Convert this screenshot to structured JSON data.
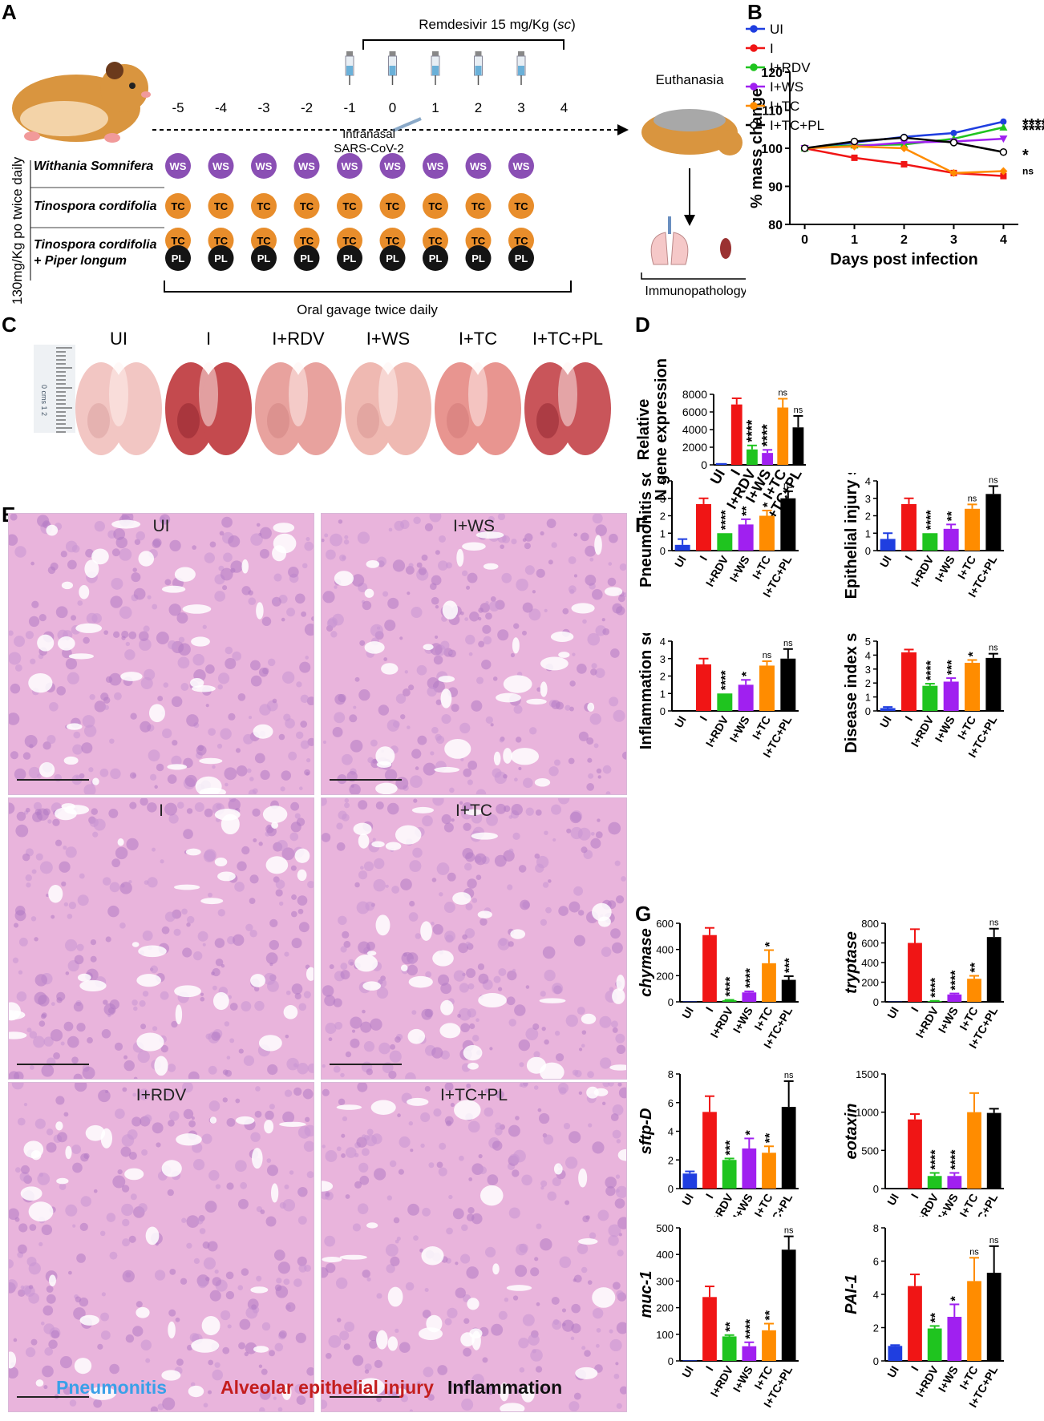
{
  "panels": {
    "A": "A",
    "B": "B",
    "C": "C",
    "D": "D",
    "E": "E",
    "F": "F",
    "G": "G"
  },
  "panelA": {
    "remdesivir_prefix": "Remdesivir 15 mg/Kg (",
    "remdesivir_route": "sc",
    "remdesivir_suffix": ")",
    "days": [
      "-5",
      "-4",
      "-3",
      "-2",
      "-1",
      "0",
      "1",
      "2",
      "3",
      "4"
    ],
    "intranasal_line1": "Intranasal",
    "intranasal_line2": "SARS-CoV-2",
    "euthanasia": "Euthanasia",
    "immunopathology": "Immunopathology",
    "vertical_label": "130mg/Kg po twice daily",
    "oral_gavage": "Oral gavage twice daily",
    "rows": [
      {
        "name": "Withania Somnifera",
        "tags": [
          "WS"
        ]
      },
      {
        "name": "Tinospora cordifolia",
        "tags": [
          "TC"
        ]
      },
      {
        "name": "Tinospora cordifolia",
        "name2": "+ Piper longum",
        "tags": [
          "TC",
          "PL"
        ]
      }
    ],
    "tag_colors": {
      "WS": "#8a4fb4",
      "TC": "#e88d2b",
      "PL": "#141414"
    }
  },
  "panelC": {
    "labels": [
      "UI",
      "I",
      "I+RDV",
      "I+WS",
      "I+TC",
      "I+TC+PL"
    ],
    "ruler_text": "0 cms 1 2"
  },
  "panelE": {
    "titles": [
      "UI",
      "I+WS",
      "I",
      "I+TC",
      "I+RDV",
      "I+TC+PL"
    ],
    "legend": {
      "pneumonitis": "Pneumonitis",
      "epithelial": "Alveolar epithelial injury",
      "inflammation": "Inflammation"
    },
    "legend_colors": {
      "pneumonitis": "#3aa0e8",
      "epithelial": "#c41e1e",
      "inflammation": "#111111"
    }
  },
  "groups_colors": {
    "UI": "#1f3ee0",
    "I": "#f01515",
    "I+RDV": "#1fc41f",
    "I+WS": "#a020f0",
    "I+TC": "#ff8c00",
    "I+TC+PL": "#000000"
  },
  "chart_data": [
    {
      "id": "B",
      "type": "line",
      "xlabel": "Days post infection",
      "ylabel": "% mass change",
      "x": [
        0,
        1,
        2,
        3,
        4
      ],
      "ylim": [
        80,
        120
      ],
      "yticks": [
        80,
        90,
        100,
        110,
        120
      ],
      "legend_position": "top-left",
      "series": [
        {
          "name": "UI",
          "values": [
            100,
            101.5,
            103.0,
            104.0,
            107.0
          ],
          "color": "#1f3ee0",
          "marker": "circle",
          "sig": "****"
        },
        {
          "name": "I",
          "values": [
            100,
            97.5,
            95.8,
            93.5,
            92.7
          ],
          "color": "#f01515",
          "marker": "square",
          "sig": ""
        },
        {
          "name": "I+RDV",
          "values": [
            100,
            100.8,
            101.0,
            102.5,
            105.5
          ],
          "color": "#1fc41f",
          "marker": "triangle",
          "sig": "****"
        },
        {
          "name": "I+WS",
          "values": [
            100,
            100.5,
            101.5,
            101.8,
            102.5
          ],
          "color": "#a020f0",
          "marker": "triangle-down",
          "sig": ""
        },
        {
          "name": "I+TC",
          "values": [
            100,
            100.5,
            100.0,
            93.5,
            94.0
          ],
          "color": "#ff8c00",
          "marker": "diamond",
          "sig": "ns"
        },
        {
          "name": "I+TC+PL",
          "values": [
            100,
            101.8,
            102.8,
            101.5,
            99.0
          ],
          "color": "#000000",
          "marker": "open-circle",
          "sig": "*"
        }
      ]
    },
    {
      "id": "D",
      "type": "bar",
      "ylabel": "Relative\nN gene expression",
      "categories": [
        "UI",
        "I",
        "I+RDV",
        "I+WS",
        "I+TC",
        "I+TC+PL"
      ],
      "values": [
        200,
        6850,
        1750,
        1350,
        6500,
        4250
      ],
      "errors": [
        0,
        700,
        450,
        350,
        1000,
        1300
      ],
      "sig": [
        "",
        "",
        "****",
        "****",
        "ns",
        "ns"
      ],
      "ylim": [
        0,
        8000
      ],
      "yticks": [
        0,
        2000,
        4000,
        6000,
        8000
      ]
    },
    {
      "id": "F1",
      "type": "bar",
      "ylabel": "Pneumonitis score",
      "categories": [
        "UI",
        "I",
        "I+RDV",
        "I+WS",
        "I+TC",
        "I+TC+PL"
      ],
      "values": [
        0.33,
        2.67,
        1.0,
        1.5,
        2.0,
        3.0
      ],
      "errors": [
        0.33,
        0.33,
        0,
        0.3,
        0.3,
        0.4
      ],
      "sig": [
        "",
        "",
        "****",
        "**",
        "*",
        "ns"
      ],
      "ylim": [
        0,
        4
      ],
      "yticks": [
        0,
        1,
        2,
        3,
        4
      ]
    },
    {
      "id": "F2",
      "type": "bar",
      "ylabel": "Epithelial injury score",
      "categories": [
        "UI",
        "I",
        "I+RDV",
        "I+WS",
        "I+TC",
        "I+TC+PL"
      ],
      "values": [
        0.67,
        2.67,
        1.0,
        1.25,
        2.4,
        3.25
      ],
      "errors": [
        0.33,
        0.33,
        0,
        0.25,
        0.25,
        0.45
      ],
      "sig": [
        "",
        "",
        "****",
        "**",
        "ns",
        "ns"
      ],
      "ylim": [
        0,
        4
      ],
      "yticks": [
        0,
        1,
        2,
        3,
        4
      ]
    },
    {
      "id": "F3",
      "type": "bar",
      "ylabel": "Inflammation score",
      "categories": [
        "UI",
        "I",
        "I+RDV",
        "I+WS",
        "I+TC",
        "I+TC+PL"
      ],
      "values": [
        0,
        2.67,
        1.0,
        1.5,
        2.6,
        3.0
      ],
      "errors": [
        0,
        0.33,
        0,
        0.28,
        0.25,
        0.55
      ],
      "sig": [
        "",
        "",
        "****",
        "*",
        "ns",
        "ns"
      ],
      "ylim": [
        0,
        4
      ],
      "yticks": [
        0,
        1,
        2,
        3,
        4
      ]
    },
    {
      "id": "F4",
      "type": "bar",
      "ylabel": "Disease index score",
      "categories": [
        "UI",
        "I",
        "I+RDV",
        "I+WS",
        "I+TC",
        "I+TC+PL"
      ],
      "values": [
        0.2,
        4.2,
        1.8,
        2.1,
        3.45,
        3.8
      ],
      "errors": [
        0.08,
        0.2,
        0.15,
        0.25,
        0.2,
        0.3
      ],
      "sig": [
        "",
        "",
        "****",
        "***",
        "*",
        "ns"
      ],
      "ylim": [
        0,
        5
      ],
      "yticks": [
        0,
        1,
        2,
        3,
        4,
        5
      ]
    },
    {
      "id": "G1",
      "type": "bar",
      "ylabel": "chymase",
      "italic": true,
      "categories": [
        "UI",
        "I",
        "I+RDV",
        "I+WS",
        "I+TC",
        "I+TC+PL"
      ],
      "values": [
        3,
        510,
        12,
        72,
        295,
        168
      ],
      "errors": [
        0,
        55,
        3,
        8,
        100,
        28
      ],
      "sig": [
        "",
        "",
        "****",
        "****",
        "*",
        "***"
      ],
      "ylim": [
        0,
        600
      ],
      "yticks": [
        0,
        200,
        400,
        600
      ]
    },
    {
      "id": "G2",
      "type": "bar",
      "ylabel": "tryptase",
      "italic": true,
      "categories": [
        "UI",
        "I",
        "I+RDV",
        "I+WS",
        "I+TC",
        "I+TC+PL"
      ],
      "values": [
        3,
        600,
        8,
        75,
        235,
        660
      ],
      "errors": [
        0,
        140,
        2,
        10,
        30,
        85
      ],
      "sig": [
        "",
        "",
        "****",
        "****",
        "**",
        "ns"
      ],
      "ylim": [
        0,
        800
      ],
      "yticks": [
        0,
        200,
        400,
        600,
        800
      ]
    },
    {
      "id": "G3",
      "type": "bar",
      "ylabel": "sftp-D",
      "italic": true,
      "categories": [
        "UI",
        "I",
        "I+RDV",
        "I+WS",
        "I+TC",
        "I+TC+PL"
      ],
      "values": [
        1.05,
        5.35,
        2.0,
        2.8,
        2.5,
        5.7
      ],
      "errors": [
        0.15,
        1.1,
        0.1,
        0.7,
        0.45,
        1.8
      ],
      "sig": [
        "",
        "",
        "***",
        "*",
        "**",
        "ns"
      ],
      "ylim": [
        0,
        8
      ],
      "yticks": [
        0,
        2,
        4,
        6,
        8
      ]
    },
    {
      "id": "G4",
      "type": "bar",
      "ylabel": "eotaxin",
      "italic": true,
      "categories": [
        "UI",
        "I",
        "I+RDV",
        "I+WS",
        "I+TC",
        "I+TC+PL"
      ],
      "values": [
        2,
        905,
        165,
        165,
        1000,
        990
      ],
      "errors": [
        0,
        70,
        40,
        40,
        250,
        55
      ],
      "sig": [
        "",
        "",
        "****",
        "****",
        "",
        ""
      ],
      "ylim": [
        0,
        1500
      ],
      "yticks": [
        0,
        500,
        1000,
        1500
      ]
    },
    {
      "id": "G5",
      "type": "bar",
      "ylabel": "muc-1",
      "italic": true,
      "categories": [
        "UI",
        "I",
        "I+RDV",
        "I+WS",
        "I+TC",
        "I+TC+PL"
      ],
      "values": [
        2,
        240,
        92,
        55,
        115,
        418
      ],
      "errors": [
        0,
        40,
        5,
        15,
        25,
        50
      ],
      "sig": [
        "",
        "",
        "**",
        "****",
        "**",
        "ns"
      ],
      "ylim": [
        0,
        500
      ],
      "yticks": [
        0,
        100,
        200,
        300,
        400,
        500
      ]
    },
    {
      "id": "G6",
      "type": "bar",
      "ylabel": "PAI-1",
      "italic": true,
      "categories": [
        "UI",
        "I",
        "I+RDV",
        "I+WS",
        "I+TC",
        "I+TC+PL"
      ],
      "values": [
        0.9,
        4.5,
        1.95,
        2.65,
        4.8,
        5.3
      ],
      "errors": [
        0.05,
        0.7,
        0.15,
        0.75,
        1.4,
        1.6
      ],
      "sig": [
        "",
        "",
        "**",
        "*",
        "ns",
        "ns"
      ],
      "ylim": [
        0,
        8
      ],
      "yticks": [
        0,
        2,
        4,
        6,
        8
      ]
    }
  ]
}
